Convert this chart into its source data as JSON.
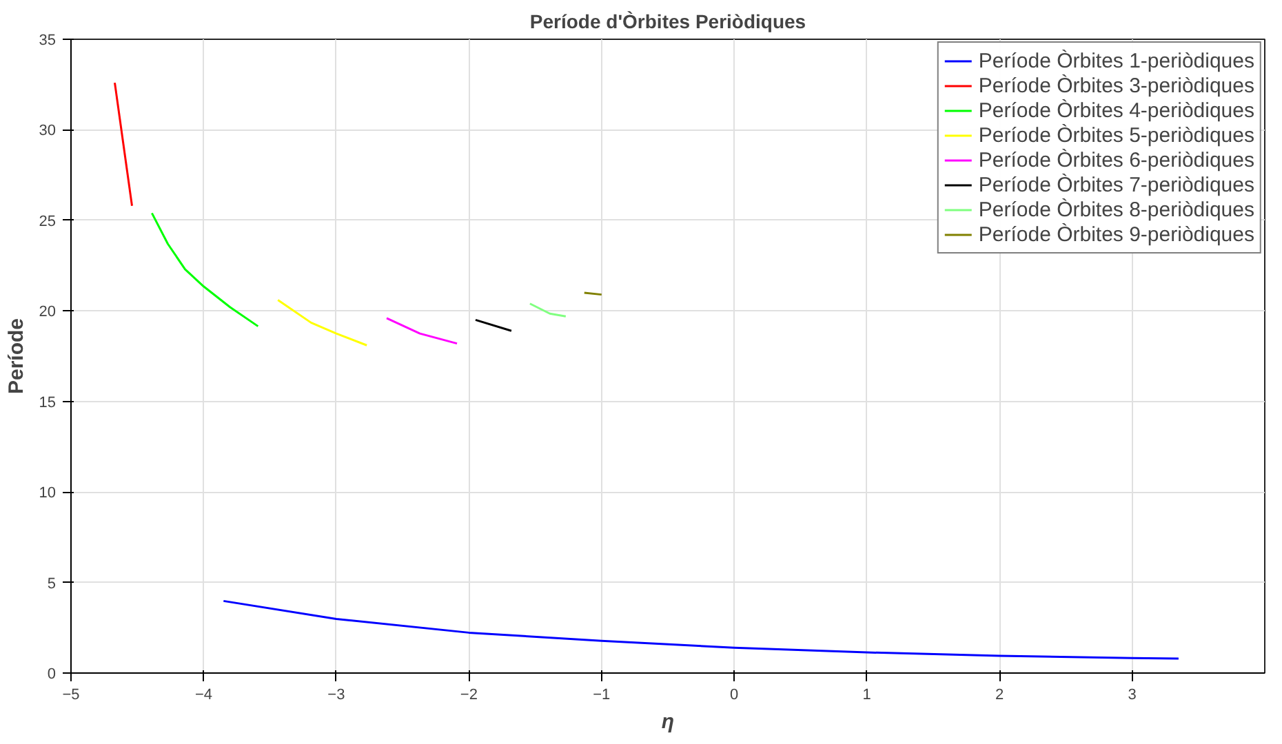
{
  "chart_data": {
    "type": "line",
    "title": "Període d'Òrbites Periòdiques",
    "xlabel": "η",
    "ylabel": "Període",
    "xlim": [
      -5,
      4
    ],
    "ylim": [
      0,
      35
    ],
    "xticks": [
      -5,
      -4,
      -3,
      -2,
      -1,
      0,
      1,
      2,
      3
    ],
    "yticks": [
      0,
      5,
      10,
      15,
      20,
      25,
      30,
      35
    ],
    "grid": true,
    "legend": "top right",
    "line_style": "solid",
    "series": [
      {
        "name": "Període Òrbites 1-periòdiques",
        "color": "#0000ff",
        "x": [
          -3.85,
          -3.0,
          -2.0,
          -1.0,
          0,
          1,
          2,
          3,
          3.35
        ],
        "values": [
          3.98,
          2.99,
          2.23,
          1.78,
          1.4,
          1.14,
          0.95,
          0.83,
          0.8
        ]
      },
      {
        "name": "Període Òrbites 3-periòdiques",
        "color": "#ff0000",
        "x": [
          -4.67,
          -4.54
        ],
        "values": [
          32.6,
          25.8
        ]
      },
      {
        "name": "Període Òrbites 4-periòdiques",
        "color": "#00ff00",
        "x": [
          -4.39,
          -4.27,
          -4.14,
          -4.0,
          -3.8,
          -3.59
        ],
        "values": [
          25.4,
          23.7,
          22.3,
          21.35,
          20.2,
          19.15
        ]
      },
      {
        "name": "Període Òrbites 5-periòdiques",
        "color": "#ffff00",
        "x": [
          -3.44,
          -3.19,
          -3.0,
          -2.77
        ],
        "values": [
          20.6,
          19.35,
          18.75,
          18.1
        ]
      },
      {
        "name": "Període Òrbites 6-periòdiques",
        "color": "#ff00ff",
        "x": [
          -2.62,
          -2.37,
          -2.09
        ],
        "values": [
          19.6,
          18.75,
          18.2
        ]
      },
      {
        "name": "Període Òrbites 7-periòdiques",
        "color": "#000000",
        "x": [
          -1.95,
          -1.68
        ],
        "values": [
          19.5,
          18.9
        ]
      },
      {
        "name": "Període Òrbites 8-periòdiques",
        "color": "#80ff80",
        "x": [
          -1.54,
          -1.39,
          -1.27
        ],
        "values": [
          20.4,
          19.85,
          19.7
        ]
      },
      {
        "name": "Període Òrbites 9-periòdiques",
        "color": "#808000",
        "x": [
          -1.13,
          -1.0
        ],
        "values": [
          21.0,
          20.9
        ]
      }
    ]
  }
}
